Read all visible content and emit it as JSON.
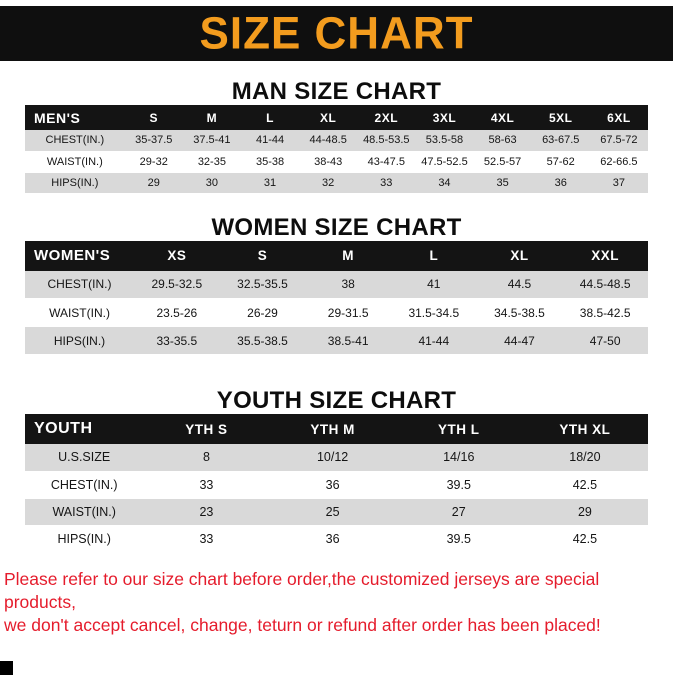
{
  "banner": {
    "title": "SIZE CHART"
  },
  "sections": [
    {
      "heading": "MAN SIZE CHART",
      "table": {
        "header": [
          "MEN'S",
          "S",
          "M",
          "L",
          "XL",
          "2XL",
          "3XL",
          "4XL",
          "5XL",
          "6XL"
        ],
        "rows": [
          [
            "CHEST(IN.)",
            "35-37.5",
            "37.5-41",
            "41-44",
            "44-48.5",
            "48.5-53.5",
            "53.5-58",
            "58-63",
            "63-67.5",
            "67.5-72"
          ],
          [
            "WAIST(IN.)",
            "29-32",
            "32-35",
            "35-38",
            "38-43",
            "43-47.5",
            "47.5-52.5",
            "52.5-57",
            "57-62",
            "62-66.5"
          ],
          [
            "HIPS(IN.)",
            "29",
            "30",
            "31",
            "32",
            "33",
            "34",
            "35",
            "36",
            "37"
          ]
        ]
      }
    },
    {
      "heading": "WOMEN SIZE CHART",
      "table": {
        "header": [
          "WOMEN'S",
          "XS",
          "S",
          "M",
          "L",
          "XL",
          "XXL"
        ],
        "rows": [
          [
            "CHEST(IN.)",
            "29.5-32.5",
            "32.5-35.5",
            "38",
            "41",
            "44.5",
            "44.5-48.5"
          ],
          [
            "WAIST(IN.)",
            "23.5-26",
            "26-29",
            "29-31.5",
            "31.5-34.5",
            "34.5-38.5",
            "38.5-42.5"
          ],
          [
            "HIPS(IN.)",
            "33-35.5",
            "35.5-38.5",
            "38.5-41",
            "41-44",
            "44-47",
            "47-50"
          ]
        ]
      }
    },
    {
      "heading": "YOUTH SIZE CHART",
      "table": {
        "header": [
          "YOUTH",
          "YTH S",
          "YTH M",
          "YTH L",
          "YTH XL"
        ],
        "rows": [
          [
            "U.S.SIZE",
            "8",
            "10/12",
            "14/16",
            "18/20"
          ],
          [
            "CHEST(IN.)",
            "33",
            "36",
            "39.5",
            "42.5"
          ],
          [
            "WAIST(IN.)",
            "23",
            "25",
            "27",
            "29"
          ],
          [
            "HIPS(IN.)",
            "33",
            "36",
            "39.5",
            "42.5"
          ]
        ]
      }
    }
  ],
  "footer": {
    "line1": "Please refer to our size chart before order,the customized jerseys are special products,",
    "line2": "we don't accept cancel, change, teturn or refund after order has been placed!"
  },
  "colors": {
    "banner_bg": "#0f0f0f",
    "accent_orange": "#f39c1e",
    "header_row_bg": "#141414",
    "row_gray": "#d9d9d9",
    "note_red": "#e51c2c",
    "text_dark": "#151515"
  }
}
